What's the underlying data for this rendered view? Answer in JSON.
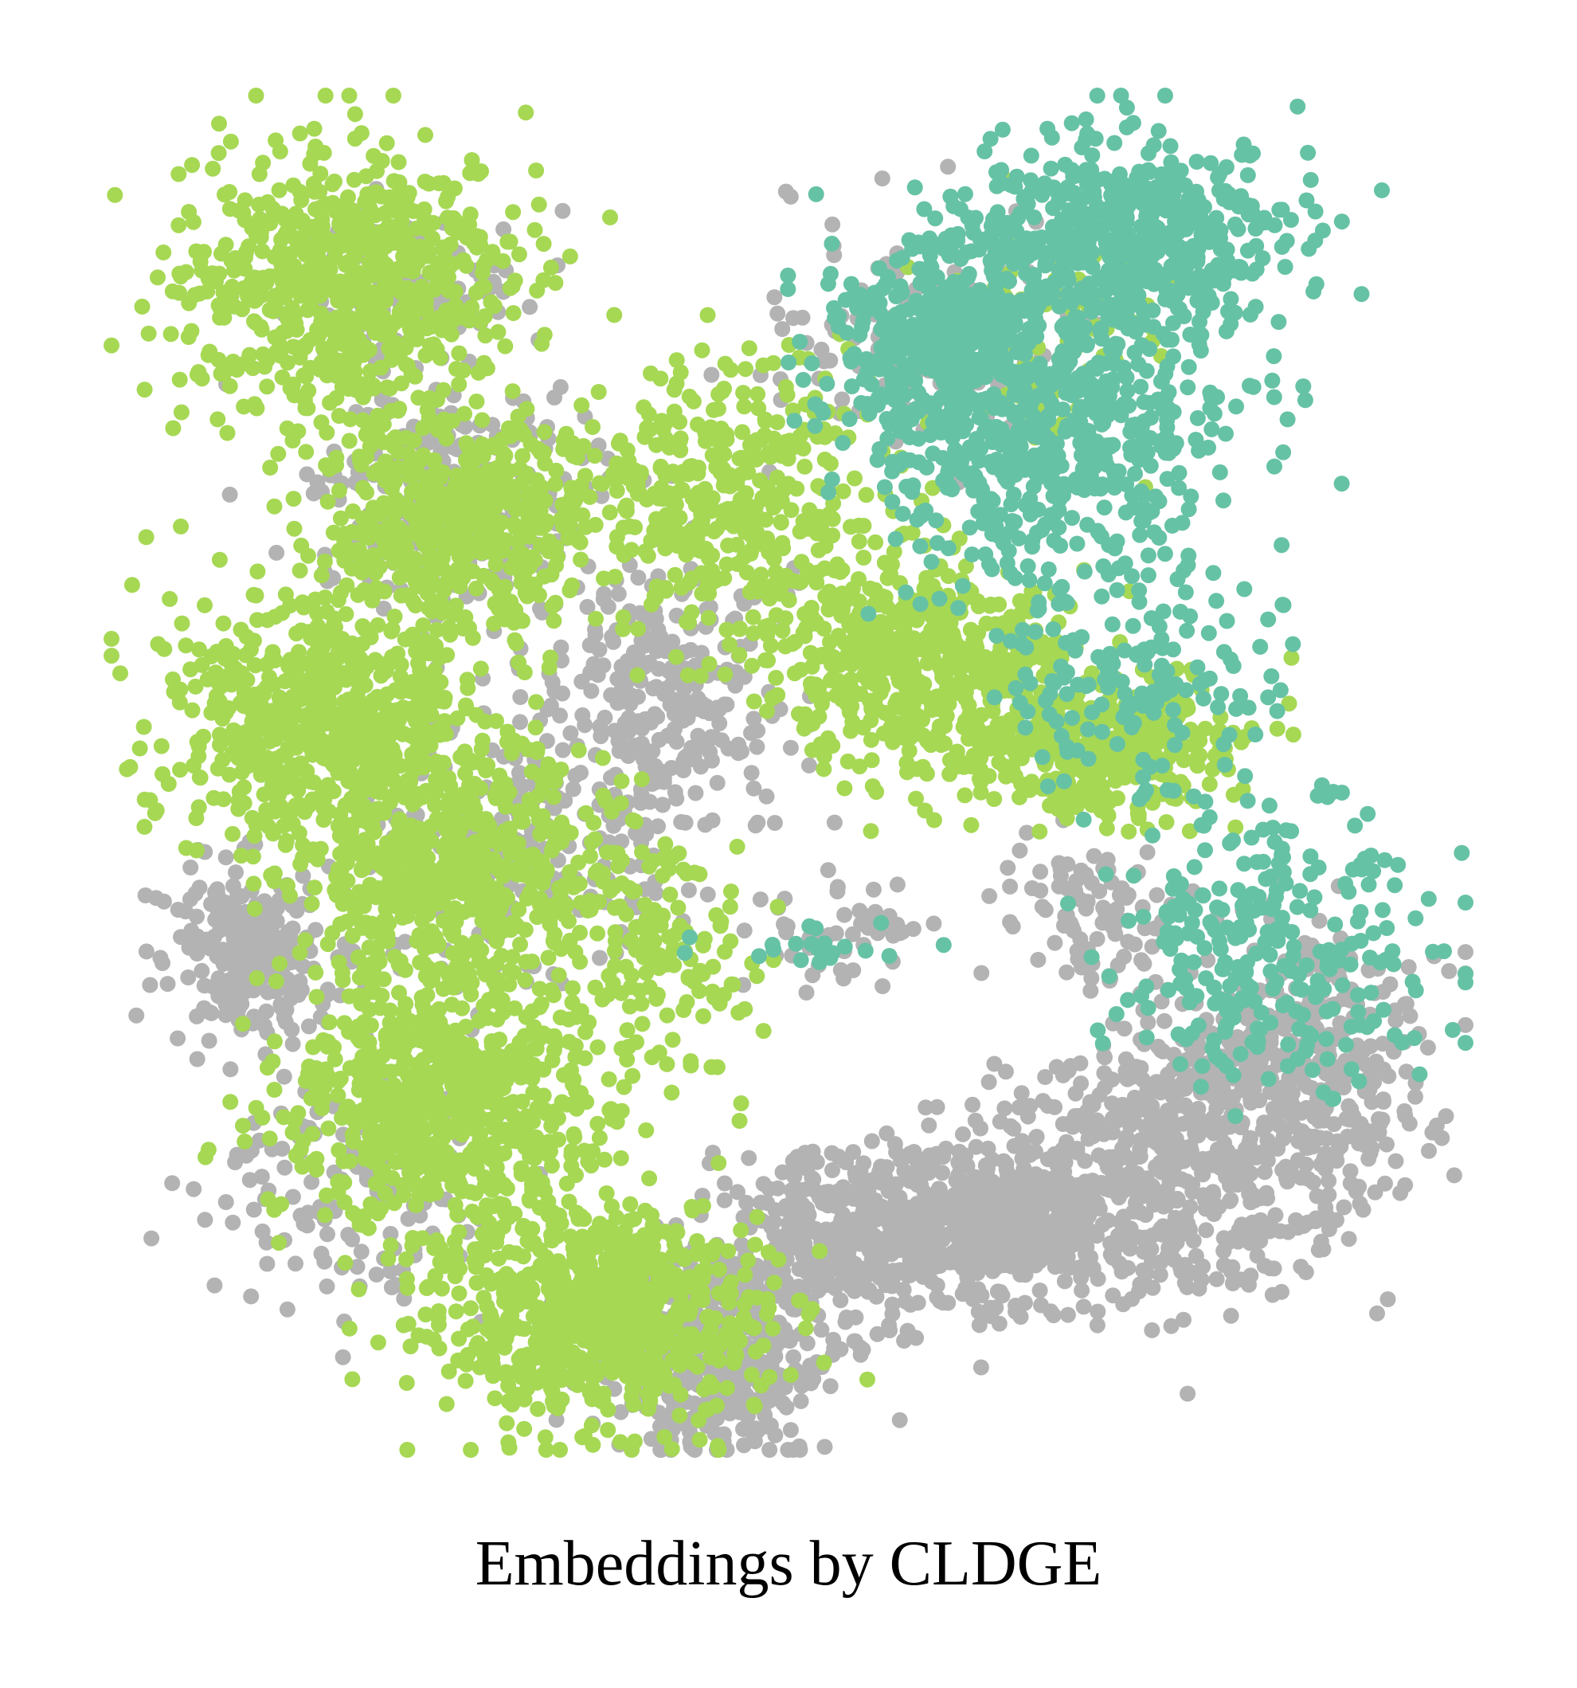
{
  "caption": "Embeddings by CLDGE",
  "chart_data": {
    "type": "scatter",
    "title": "",
    "xlabel": "",
    "ylabel": "",
    "axes_visible": false,
    "grid": false,
    "legend": "none",
    "xlim": [
      0,
      100
    ],
    "ylim": [
      0,
      100
    ],
    "series": [
      {
        "color": "#b3b3b3",
        "clusters": [
          {
            "center": [
              25,
              30
            ],
            "spread": [
              5,
              4
            ],
            "n": 260
          },
          {
            "center": [
              10,
              63
            ],
            "spread": [
              3,
              3
            ],
            "n": 260
          },
          {
            "center": [
              30,
              55
            ],
            "spread": [
              6,
              5
            ],
            "n": 200
          },
          {
            "center": [
              41,
              45
            ],
            "spread": [
              5,
              5
            ],
            "n": 280
          },
          {
            "center": [
              18,
              80
            ],
            "spread": [
              5,
              5
            ],
            "n": 140
          },
          {
            "center": [
              57,
              84
            ],
            "spread": [
              6,
              3
            ],
            "n": 500
          },
          {
            "center": [
              45,
              93
            ],
            "spread": [
              4,
              4
            ],
            "n": 380
          },
          {
            "center": [
              68,
              83
            ],
            "spread": [
              6,
              3
            ],
            "n": 460
          },
          {
            "center": [
              80,
              78
            ],
            "spread": [
              7,
              5
            ],
            "n": 500
          },
          {
            "center": [
              88,
              70
            ],
            "spread": [
              5,
              5
            ],
            "n": 280
          },
          {
            "center": [
              72,
              60
            ],
            "spread": [
              3,
              3
            ],
            "n": 90
          },
          {
            "center": [
              54,
              62
            ],
            "spread": [
              3,
              2
            ],
            "n": 50
          },
          {
            "center": [
              60,
              18
            ],
            "spread": [
              6,
              5
            ],
            "n": 120
          },
          {
            "center": [
              22,
              15
            ],
            "spread": [
              4,
              3
            ],
            "n": 120
          }
        ]
      },
      {
        "color": "#a6d854",
        "clusters": [
          {
            "center": [
              17,
              14
            ],
            "spread": [
              6,
              5
            ],
            "n": 700
          },
          {
            "center": [
              26,
              31
            ],
            "spread": [
              5,
              4
            ],
            "n": 500
          },
          {
            "center": [
              16,
              46
            ],
            "spread": [
              6,
              5
            ],
            "n": 650
          },
          {
            "center": [
              25,
              57
            ],
            "spread": [
              6,
              4
            ],
            "n": 550
          },
          {
            "center": [
              25,
              74
            ],
            "spread": [
              6,
              5
            ],
            "n": 750
          },
          {
            "center": [
              36,
              90
            ],
            "spread": [
              6,
              4
            ],
            "n": 750
          },
          {
            "center": [
              45,
              30
            ],
            "spread": [
              6,
              5
            ],
            "n": 420
          },
          {
            "center": [
              60,
              42
            ],
            "spread": [
              5,
              4
            ],
            "n": 500
          },
          {
            "center": [
              73,
              48
            ],
            "spread": [
              5,
              3
            ],
            "n": 360
          },
          {
            "center": [
              41,
              64
            ],
            "spread": [
              3,
              5
            ],
            "n": 120
          },
          {
            "center": [
              70,
              18
            ],
            "spread": [
              4,
              4
            ],
            "n": 90
          }
        ]
      },
      {
        "color": "#66c2a5",
        "clusters": [
          {
            "center": [
              74,
              11
            ],
            "spread": [
              6,
              4
            ],
            "n": 550
          },
          {
            "center": [
              70,
              25
            ],
            "spread": [
              7,
              6
            ],
            "n": 550
          },
          {
            "center": [
              61,
              18
            ],
            "spread": [
              4,
              4
            ],
            "n": 350
          },
          {
            "center": [
              86,
              63
            ],
            "spread": [
              6,
              5
            ],
            "n": 280
          },
          {
            "center": [
              76,
              44
            ],
            "spread": [
              5,
              4
            ],
            "n": 140
          },
          {
            "center": [
              52,
              63
            ],
            "spread": [
              4,
              1
            ],
            "n": 20
          }
        ]
      }
    ]
  }
}
